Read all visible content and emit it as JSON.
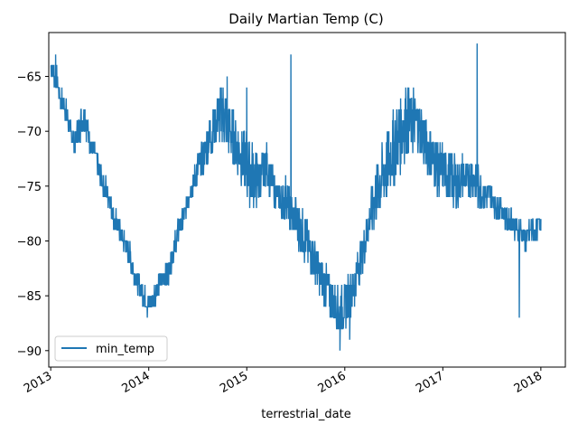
{
  "chart_data": {
    "type": "line",
    "title": "Daily Martian Temp (C)",
    "xlabel": "terrestrial_date",
    "ylabel": "",
    "xlim": [
      2012.98,
      2018.25
    ],
    "ylim": [
      -91.5,
      -61
    ],
    "x_ticks": [
      2013,
      2014,
      2015,
      2016,
      2017,
      2018
    ],
    "x_tick_labels": [
      "2013",
      "2014",
      "2015",
      "2016",
      "2017",
      "2018"
    ],
    "y_ticks": [
      -65,
      -70,
      -75,
      -80,
      -85,
      -90
    ],
    "y_tick_labels": [
      "−65",
      "−70",
      "−75",
      "−80",
      "−85",
      "−90"
    ],
    "grid": false,
    "legend": "lower-left",
    "color": "#1f77b4",
    "series": [
      {
        "name": "min_temp",
        "x": [
          2013.0,
          2013.05,
          2013.1,
          2013.15,
          2013.2,
          2013.25,
          2013.3,
          2013.35,
          2013.4,
          2013.45,
          2013.5,
          2013.55,
          2013.6,
          2013.65,
          2013.7,
          2013.75,
          2013.8,
          2013.85,
          2013.9,
          2013.95,
          2014.0,
          2014.05,
          2014.1,
          2014.15,
          2014.2,
          2014.25,
          2014.3,
          2014.35,
          2014.4,
          2014.45,
          2014.5,
          2014.55,
          2014.6,
          2014.65,
          2014.7,
          2014.75,
          2014.8,
          2014.85,
          2014.9,
          2014.95,
          2015.0,
          2015.05,
          2015.1,
          2015.15,
          2015.2,
          2015.25,
          2015.3,
          2015.35,
          2015.4,
          2015.45,
          2015.5,
          2015.55,
          2015.6,
          2015.65,
          2015.7,
          2015.75,
          2015.8,
          2015.85,
          2015.9,
          2015.95,
          2016.0,
          2016.05,
          2016.1,
          2016.15,
          2016.2,
          2016.25,
          2016.3,
          2016.35,
          2016.4,
          2016.45,
          2016.5,
          2016.55,
          2016.6,
          2016.65,
          2016.7,
          2016.75,
          2016.8,
          2016.85,
          2016.9,
          2016.95,
          2017.0,
          2017.05,
          2017.1,
          2017.15,
          2017.2,
          2017.25,
          2017.3,
          2017.35,
          2017.4,
          2017.45,
          2017.5,
          2017.55,
          2017.6,
          2017.65,
          2017.7,
          2017.75,
          2017.8,
          2017.85,
          2017.9,
          2017.95,
          2018.0
        ],
        "min": [
          -65,
          -66,
          -68,
          -69,
          -71,
          -72,
          -71,
          -70,
          -72,
          -73,
          -75,
          -76,
          -77,
          -79,
          -80,
          -81,
          -82,
          -84,
          -85,
          -86,
          -87,
          -86,
          -85,
          -84,
          -84,
          -82,
          -80,
          -79,
          -77,
          -76,
          -75,
          -74,
          -73,
          -72,
          -71,
          -71,
          -72,
          -73,
          -74,
          -75,
          -76,
          -77,
          -77,
          -76,
          -75,
          -76,
          -77,
          -78,
          -78,
          -79,
          -80,
          -81,
          -82,
          -83,
          -84,
          -85,
          -86,
          -87,
          -88,
          -89,
          -88,
          -87,
          -86,
          -84,
          -82,
          -80,
          -79,
          -78,
          -77,
          -76,
          -75,
          -74,
          -73,
          -72,
          -72,
          -72,
          -73,
          -74,
          -75,
          -76,
          -76,
          -76,
          -77,
          -77,
          -76,
          -76,
          -76,
          -77,
          -77,
          -77,
          -77,
          -78,
          -78,
          -79,
          -79,
          -80,
          -80,
          -81,
          -80,
          -80,
          -79
        ],
        "max": [
          -63,
          -64,
          -66,
          -67,
          -69,
          -70,
          -68,
          -67,
          -70,
          -71,
          -73,
          -74,
          -75,
          -77,
          -78,
          -79,
          -80,
          -82,
          -83,
          -84,
          -85,
          -84,
          -83,
          -82,
          -82,
          -80,
          -78,
          -77,
          -75,
          -74,
          -72,
          -71,
          -69,
          -68,
          -67,
          -65,
          -67,
          -68,
          -69,
          -70,
          -70,
          -71,
          -72,
          -72,
          -71,
          -73,
          -74,
          -75,
          -74,
          -76,
          -76,
          -77,
          -78,
          -79,
          -80,
          -81,
          -82,
          -83,
          -84,
          -84,
          -84,
          -83,
          -82,
          -80,
          -79,
          -76,
          -74,
          -72,
          -71,
          -69,
          -68,
          -67,
          -66,
          -66,
          -67,
          -67,
          -68,
          -69,
          -70,
          -71,
          -71,
          -72,
          -72,
          -73,
          -72,
          -73,
          -72,
          -73,
          -74,
          -75,
          -75,
          -76,
          -76,
          -77,
          -77,
          -78,
          -78,
          -79,
          -78,
          -78,
          -77
        ],
        "spikes": [
          {
            "x": 2015.45,
            "y": -63
          },
          {
            "x": 2015.95,
            "y": -90
          },
          {
            "x": 2017.35,
            "y": -62
          },
          {
            "x": 2017.78,
            "y": -87
          },
          {
            "x": 2014.8,
            "y": -65
          },
          {
            "x": 2015.0,
            "y": -66
          },
          {
            "x": 2016.7,
            "y": -66
          },
          {
            "x": 2016.05,
            "y": -89
          },
          {
            "x": 2013.05,
            "y": -63
          }
        ]
      }
    ]
  }
}
